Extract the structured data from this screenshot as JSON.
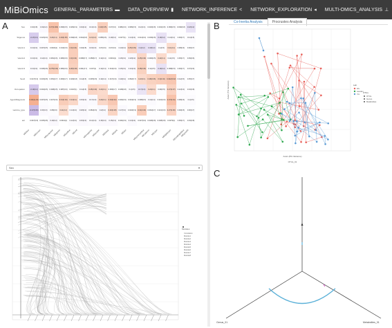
{
  "navbar": {
    "brand": "MiBiOmics",
    "items": [
      {
        "label": "GENERAL_PARAMETERS",
        "icon": "folder-icon",
        "glyph": "▬"
      },
      {
        "label": "DATA_OVERVIEW",
        "icon": "bar-chart-icon",
        "glyph": "▮"
      },
      {
        "label": "NETWORK_INFERENCE",
        "icon": "share-icon",
        "glyph": "<"
      },
      {
        "label": "NETWORK_EXPLORATION",
        "icon": "arrow-circle-icon",
        "glyph": "◂"
      },
      {
        "label": "MULTI-OMICS_ANALYSIS",
        "icon": "sitemap-icon",
        "glyph": "⊥"
      }
    ]
  },
  "panels": {
    "a": "A",
    "b": "B",
    "c": "C"
  },
  "heatmap": {
    "rows": [
      "Sex",
      "Sitgenus",
      "Vaccin1",
      "Vaccin2",
      "Vaccin3",
      "Sexd",
      "Occupation",
      "AgeAtDiagnosis",
      "vaccine_type",
      "ant"
    ],
    "cols": [
      "MEblue",
      "MEbrown",
      "MEturquoise",
      "MEgreen",
      "MEyellow",
      "MEred",
      "MEmagenta",
      "MEpurple",
      "MEblack",
      "MEpink",
      "MEtan",
      "MEgreenyellow",
      "MEsalmon",
      "MEcyan",
      "MElightcyan",
      "MEmidnightblue",
      "MEgrey60"
    ],
    "values": [
      [
        "0.04",
        "0.19",
        "0.37",
        "0.096",
        "0.026",
        "0.19",
        "0.13",
        "0.29",
        "0.07",
        "0.084",
        "0.095",
        "0.12",
        "0.046",
        "0.032",
        "0.096",
        "0.039",
        "0.18"
      ],
      [
        "-0.17",
        "0.023",
        "0.24",
        "0.29",
        "0.039",
        "0.034",
        "0.21",
        "0.085",
        "0.19",
        "0.0077",
        "0.14",
        "0.014",
        "0.039",
        "0.19",
        "0.14",
        "0.06",
        "0.11"
      ],
      [
        "0.13",
        "0.097",
        "0.0046",
        "0.013",
        "0.3",
        "0.04",
        "0.15",
        "0.07",
        "0.07",
        "0.13",
        "0.25",
        "0.2",
        "0.18",
        "0.1",
        "0.21",
        "0.08",
        "0.06"
      ],
      [
        "0.13",
        "0.14",
        "0.081",
        "0.084",
        "0.3",
        "0.068",
        "0.058",
        "0.12",
        "0.0019",
        "0.15",
        "0.18",
        "0.25",
        "0.096",
        "0.22",
        "0.11",
        "0.05",
        "0.09"
      ],
      [
        "0.13",
        "0.048",
        "0.275",
        "0.084",
        "0.28",
        "0.061",
        "0.007",
        "0.12",
        "0.013",
        "0.15",
        "0.16",
        "0.28",
        "0.11",
        "0.19",
        "0.098",
        "0.06",
        "0.07"
      ],
      [
        "0.017",
        "0.033",
        "0.052",
        "0.063",
        "0.029",
        "0.11",
        "0.035",
        "0.13",
        "0.017",
        "0.19",
        "0.052",
        "0.22",
        "0.28",
        "0.3",
        "0.342",
        "0.11",
        "0.05"
      ],
      [
        "-0.19",
        "0.094",
        "0.098",
        "0.087",
        "0.0047",
        "0.11",
        "0.25",
        "0.22",
        "0.066",
        "0.028",
        "0.1",
        "0.17",
        "0.22",
        "0.09",
        "0.27",
        "0.12",
        "0.04"
      ],
      [
        "0.49",
        "0.097",
        "0.027",
        "0.31",
        "0.24",
        "0.15",
        "0.17",
        "0.24",
        "0.34",
        "0.023",
        "0.024",
        "0.098",
        "0.13",
        "0.022",
        "0.37",
        "0.08",
        "0.1"
      ],
      [
        "-0.27",
        "0.15",
        "0.08",
        "0.21",
        "0.14",
        "0.18",
        "0.084",
        "0.2",
        "0.26",
        "0.17",
        "0.023",
        "0.31",
        "0.062",
        "0.021",
        "0.27",
        "0.09",
        "0.06"
      ],
      [
        "0.037",
        "0.035",
        "0.19",
        "0.0013",
        "0.12",
        "0.15",
        "0.12",
        "0.15",
        "0.15",
        "0.024",
        "0.13",
        "0.027",
        "0.048",
        "0.038",
        "0.0079",
        "0.05",
        "0.03"
      ]
    ],
    "subvalues": [
      [
        "(0.8)",
        "(0.2)",
        "(0.009)",
        "(0.5)",
        "(0.9)",
        "(0.2)",
        "(0.4)",
        "(0.05)",
        "(0.6)",
        "(0.6)",
        "(0.5)",
        "(0.4)",
        "(0.8)",
        "(0.8)",
        "(0.5)",
        "(0.8)",
        "(0.2)"
      ],
      [
        "(0.3)",
        "(0.9)",
        "(0.1)",
        "(0.05)",
        "(0.8)",
        "(0.8)",
        "(0.2)",
        "(0.6)",
        "(0.2)",
        "(1)",
        "(0.4)",
        "(0.9)",
        "(0.8)",
        "(0.2)",
        "(0.4)",
        "(0.7)",
        "(0.5)"
      ],
      [
        "(0.4)",
        "(0.5)",
        "(1)",
        "(0.9)",
        "(0.04)",
        "(0.8)",
        "(0.3)",
        "(0.6)",
        "(0.6)",
        "(0.4)",
        "(0.09)",
        "(0.2)",
        "(0.2)",
        "(0.5)",
        "(0.2)",
        "(0.6)",
        "(0.7)"
      ],
      [
        "(0.4)",
        "(0.4)",
        "(0.6)",
        "(0.6)",
        "(0.04)",
        "(0.7)",
        "(0.7)",
        "(0.4)",
        "(1)",
        "(0.3)",
        "(0.2)",
        "(0.09)",
        "(0.5)",
        "(0.1)",
        "(0.5)",
        "(0.7)",
        "(0.6)"
      ],
      [
        "(0.4)",
        "(0.8)",
        "(0.06)",
        "(0.6)",
        "(0.06)",
        "(0.7)",
        "(1)",
        "(0.4)",
        "(0.9)",
        "(0.3)",
        "(0.3)",
        "(0.06)",
        "(0.5)",
        "(0.2)",
        "(0.5)",
        "(0.7)",
        "(0.6)"
      ],
      [
        "(0.9)",
        "(0.8)",
        "(0.7)",
        "(0.7)",
        "(0.8)",
        "(0.5)",
        "(0.8)",
        "(0.4)",
        "(0.9)",
        "(0.2)",
        "(0.7)",
        "(0.1)",
        "(0.06)",
        "(0.04)",
        "(0.02)",
        "(0.5)",
        "(0.7)"
      ],
      [
        "(0.2)",
        "(0.5)",
        "(0.5)",
        "(0.6)",
        "(1)",
        "(0.5)",
        "(0.09)",
        "(0.1)",
        "(0.7)",
        "(0.8)",
        "(0.5)",
        "(0.3)",
        "(0.1)",
        "(0.5)",
        "(0.07)",
        "(0.4)",
        "(0.8)"
      ],
      [
        "(4e-04)",
        "(0.5)",
        "(0.9)",
        "(0.04)",
        "(0.1)",
        "(0.3)",
        "(0.3)",
        "(0.1)",
        "(0.02)",
        "(0.9)",
        "(0.9)",
        "(0.5)",
        "(0.4)",
        "(0.9)",
        "(0.01)",
        "(0.6)",
        "(0.5)"
      ],
      [
        "(0.06)",
        "(0.3)",
        "(0.6)",
        "(0.2)",
        "(0.4)",
        "(0.2)",
        "(0.6)",
        "(0.2)",
        "(0.08)",
        "(0.3)",
        "(0.9)",
        "(0.04)",
        "(0.7)",
        "(0.9)",
        "(0.06)",
        "(0.5)",
        "(0.7)"
      ],
      [
        "(0.8)",
        "(0.8)",
        "(0.2)",
        "(1)",
        "(0.4)",
        "(0.3)",
        "(0.4)",
        "(0.3)",
        "(0.3)",
        "(0.9)",
        "(0.4)",
        "(0.9)",
        "(0.8)",
        "(0.8)",
        "(1)",
        "(0.7)",
        "(0.8)"
      ]
    ],
    "colors": {
      "pos": "#f4a582",
      "neg": "#b39ddb",
      "neutral": "#ffffff"
    }
  },
  "select": {
    "value": "Sex"
  },
  "tabs": [
    {
      "label": "Co-Inertia Analysis"
    },
    {
      "label": "Procrustes Analysis"
    }
  ],
  "procrustes": {
    "xlabel": "Axis1 (8% Variance)",
    "ylabel": "Axis2 (7% Variance)",
    "legend_title": "Lab",
    "legend_items": [
      "DS",
      "sweden",
      "Vm"
    ],
    "legend2_title": "OTUs",
    "legend2_items": [
      "OTUs",
      "Genus",
      "Metabolites"
    ],
    "bottom_label": "OTUs_01",
    "colors": {
      "red": "#e8605a",
      "green": "#2fa84f",
      "blue": "#5b9bd5"
    }
  },
  "sankey_plot": {
    "legend_title": "Modules",
    "legend_items": [
      "Correlation",
      "Module1",
      "Module2",
      "Module3",
      "Module4",
      "Module5",
      "Module6",
      "Module7",
      "Module8"
    ]
  },
  "tri": {
    "bottom_left": "Genus_01",
    "bottom_right": "Metabolites_01",
    "colors": {
      "arc": "#5ab0d8",
      "link": "#e070d0"
    }
  }
}
